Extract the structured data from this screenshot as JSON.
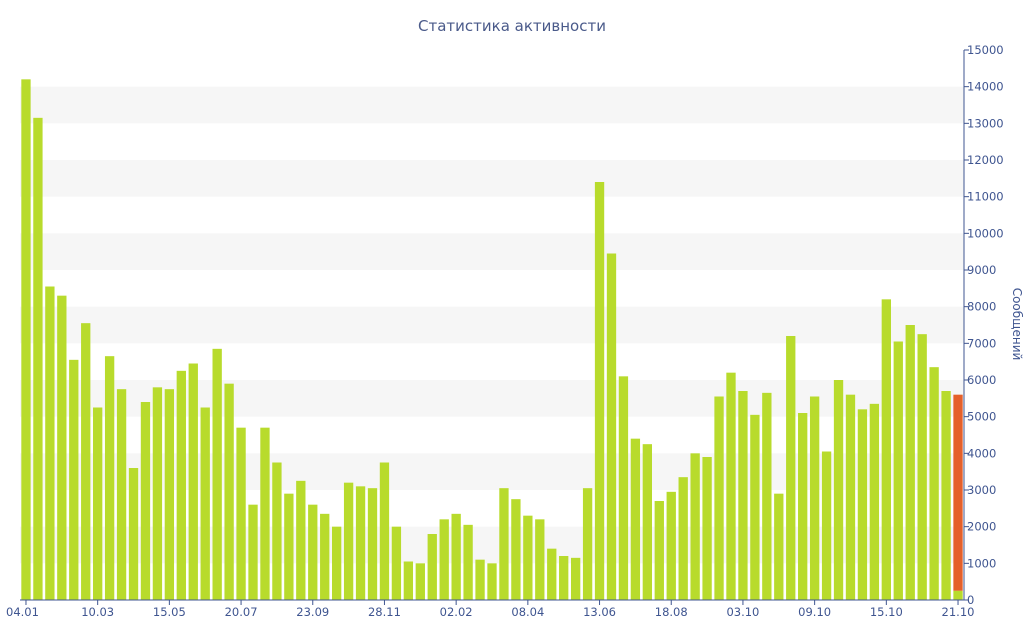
{
  "chart_data": {
    "type": "bar",
    "title": "Статистика активности",
    "ylabel": "Сообщений",
    "xlabel": "",
    "ylim": [
      0,
      15000
    ],
    "yticks": [
      0,
      1000,
      2000,
      3000,
      4000,
      5000,
      6000,
      7000,
      8000,
      9000,
      10000,
      11000,
      12000,
      13000,
      14000,
      15000
    ],
    "xtick_labels": [
      {
        "index": 0,
        "label": "04.01"
      },
      {
        "index": 6,
        "label": "10.03"
      },
      {
        "index": 12,
        "label": "15.05"
      },
      {
        "index": 18,
        "label": "20.07"
      },
      {
        "index": 24,
        "label": "23.09"
      },
      {
        "index": 30,
        "label": "28.11"
      },
      {
        "index": 36,
        "label": "02.02"
      },
      {
        "index": 42,
        "label": "08.04"
      },
      {
        "index": 48,
        "label": "13.06"
      },
      {
        "index": 54,
        "label": "18.08"
      },
      {
        "index": 60,
        "label": "03.10"
      },
      {
        "index": 66,
        "label": "09.10"
      },
      {
        "index": 72,
        "label": "15.10"
      },
      {
        "index": 78,
        "label": "21.10"
      }
    ],
    "values": [
      14200,
      13150,
      8550,
      8300,
      6550,
      7550,
      5250,
      6650,
      5750,
      3600,
      5400,
      5800,
      5750,
      6250,
      6450,
      5250,
      6850,
      5900,
      4700,
      2600,
      4700,
      3750,
      2900,
      3250,
      2600,
      2350,
      2000,
      3200,
      3100,
      3050,
      3750,
      2000,
      1050,
      1000,
      1800,
      2200,
      2350,
      2050,
      1100,
      1000,
      3050,
      2750,
      2300,
      2200,
      1400,
      1200,
      1150,
      3050,
      11400,
      9450,
      6100,
      4400,
      4250,
      2700,
      2950,
      3350,
      4000,
      3900,
      5550,
      6200,
      5700,
      5050,
      5650,
      2900,
      7200,
      5100,
      5550,
      4050,
      6000,
      5600,
      5200,
      5350,
      8200,
      7050,
      7500,
      7250,
      6350,
      5700,
      5600
    ],
    "highlight": {
      "index": 78,
      "color": "#e5602a"
    },
    "bar_color": "#b8db2c",
    "band_color": "#f6f6f6",
    "axis_color": "#3f5590",
    "grid": "alternating bands",
    "legend": "none"
  }
}
